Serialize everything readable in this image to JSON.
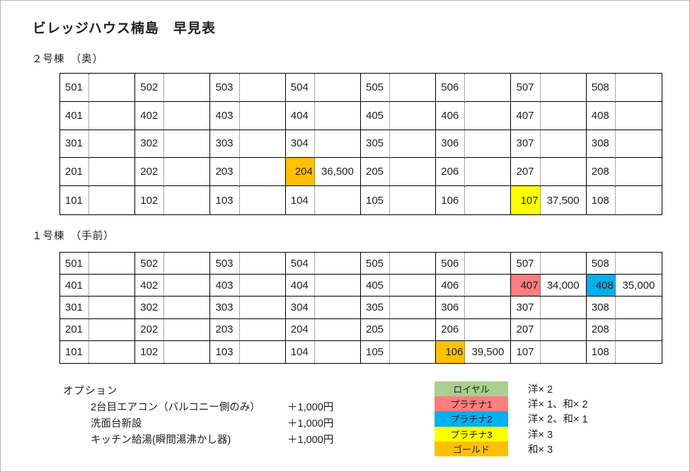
{
  "page": {
    "title": "ビレッジハウス楠島　早見表"
  },
  "buildings": [
    {
      "name": "２号棟　（奥）",
      "rows": [
        [
          {
            "room": "501"
          },
          {
            "room": "502"
          },
          {
            "room": "503"
          },
          {
            "room": "504"
          },
          {
            "room": "505"
          },
          {
            "room": "506"
          },
          {
            "room": "507"
          },
          {
            "room": "508"
          }
        ],
        [
          {
            "room": "401"
          },
          {
            "room": "402"
          },
          {
            "room": "403"
          },
          {
            "room": "404"
          },
          {
            "room": "405"
          },
          {
            "room": "406"
          },
          {
            "room": "407"
          },
          {
            "room": "408"
          }
        ],
        [
          {
            "room": "301"
          },
          {
            "room": "302"
          },
          {
            "room": "303"
          },
          {
            "room": "304"
          },
          {
            "room": "305"
          },
          {
            "room": "306"
          },
          {
            "room": "307"
          },
          {
            "room": "308"
          }
        ],
        [
          {
            "room": "201"
          },
          {
            "room": "202"
          },
          {
            "room": "203"
          },
          {
            "room": "204",
            "price": "36,500",
            "color": "#FFC000",
            "tier": "ゴールド"
          },
          {
            "room": "205"
          },
          {
            "room": "206"
          },
          {
            "room": "207"
          },
          {
            "room": "208"
          }
        ],
        [
          {
            "room": "101"
          },
          {
            "room": "102"
          },
          {
            "room": "103"
          },
          {
            "room": "104"
          },
          {
            "room": "105"
          },
          {
            "room": "106"
          },
          {
            "room": "107",
            "price": "37,500",
            "color": "#FFFF00",
            "tier": "プラチナ3"
          },
          {
            "room": "108"
          }
        ]
      ]
    },
    {
      "name": "１号棟　（手前）",
      "rows": [
        [
          {
            "room": "501"
          },
          {
            "room": "502"
          },
          {
            "room": "503"
          },
          {
            "room": "504"
          },
          {
            "room": "505"
          },
          {
            "room": "506"
          },
          {
            "room": "507"
          },
          {
            "room": "508"
          }
        ],
        [
          {
            "room": "401"
          },
          {
            "room": "402"
          },
          {
            "room": "403"
          },
          {
            "room": "404"
          },
          {
            "room": "405"
          },
          {
            "room": "406"
          },
          {
            "room": "407",
            "price": "34,000",
            "color": "#FF7C80",
            "tier": "プラチナ1"
          },
          {
            "room": "408",
            "price": "35,000",
            "color": "#00B0F0",
            "tier": "プラチナ2"
          }
        ],
        [
          {
            "room": "301"
          },
          {
            "room": "302"
          },
          {
            "room": "303"
          },
          {
            "room": "304"
          },
          {
            "room": "305"
          },
          {
            "room": "306"
          },
          {
            "room": "307"
          },
          {
            "room": "308"
          }
        ],
        [
          {
            "room": "201"
          },
          {
            "room": "202"
          },
          {
            "room": "203"
          },
          {
            "room": "204"
          },
          {
            "room": "205"
          },
          {
            "room": "206"
          },
          {
            "room": "207"
          },
          {
            "room": "208"
          }
        ],
        [
          {
            "room": "101"
          },
          {
            "room": "102"
          },
          {
            "room": "103"
          },
          {
            "room": "104"
          },
          {
            "room": "105"
          },
          {
            "room": "106",
            "price": "39,500",
            "color": "#FFC000",
            "tier": "ゴールド"
          },
          {
            "room": "107"
          },
          {
            "room": "108"
          }
        ]
      ]
    }
  ],
  "options": {
    "heading": "オプション",
    "items": [
      {
        "label": "2台目エアコン（バルコニー側のみ）",
        "price": "＋1,000円"
      },
      {
        "label": "洗面台新設",
        "price": "＋1,000円"
      },
      {
        "label": "キッチン給湯(瞬間湯沸かし器)",
        "price": "＋1,000円"
      }
    ]
  },
  "legend": [
    {
      "name": "ロイヤル",
      "color": "#A9D08E",
      "desc": "洋× 2"
    },
    {
      "name": "プラチナ1",
      "color": "#FF7C80",
      "desc": "洋× 1、和× 2"
    },
    {
      "name": "プラチナ2",
      "color": "#00B0F0",
      "desc": "洋× 2、和× 1"
    },
    {
      "name": "プラチナ3",
      "color": "#FFFF00",
      "desc": "洋× 3"
    },
    {
      "name": "ゴールド",
      "color": "#FFC000",
      "desc": "和× 3"
    }
  ]
}
